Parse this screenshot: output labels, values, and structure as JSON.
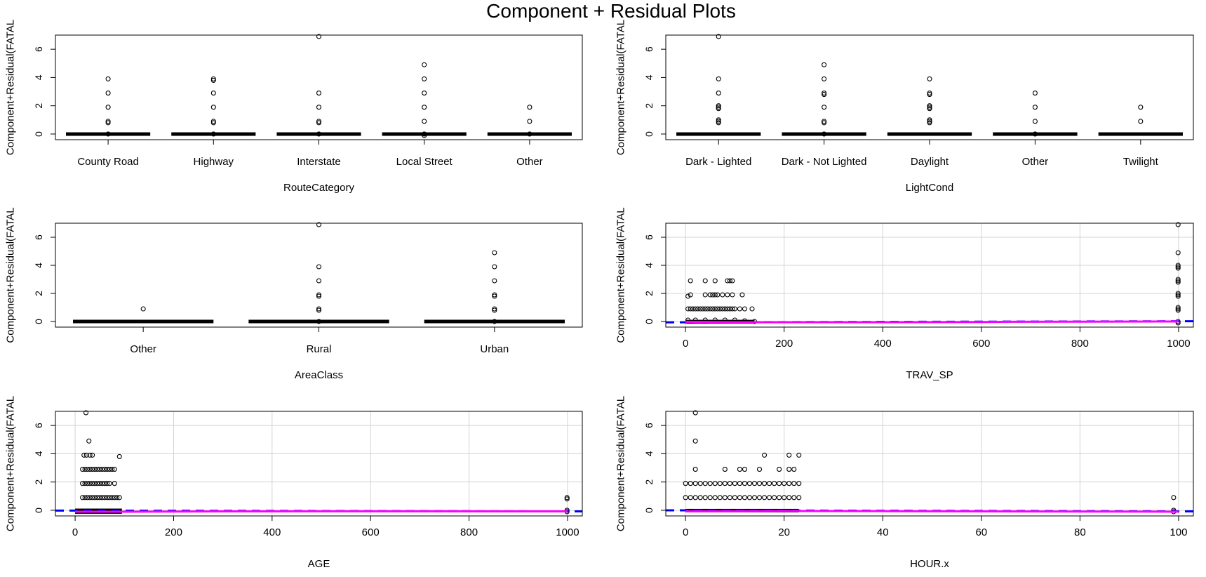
{
  "figure": {
    "title": "Component + Residual Plots"
  },
  "chart_data": [
    {
      "type": "box",
      "xlabel": "RouteCategory",
      "ylabel": "Component+Residual(FATAL",
      "ylim": [
        -0.4,
        7
      ],
      "yticks": [
        0,
        2,
        4,
        6
      ],
      "grid": false,
      "categories": [
        "County Road",
        "Highway",
        "Interstate",
        "Local Street",
        "Other"
      ],
      "groups": [
        {
          "box": [
            0,
            0,
            0
          ],
          "outliers": [
            0,
            0.8,
            0.9,
            1.9,
            2.9,
            3.9
          ]
        },
        {
          "box": [
            0,
            0,
            0
          ],
          "outliers": [
            0,
            0.8,
            0.9,
            1.9,
            2.9,
            3.8,
            3.9
          ]
        },
        {
          "box": [
            0,
            0,
            0
          ],
          "outliers": [
            0,
            0.8,
            0.9,
            1.9,
            2.9,
            6.9
          ]
        },
        {
          "box": [
            0,
            0,
            0
          ],
          "outliers": [
            -0.1,
            0,
            0.9,
            1.9,
            2.9,
            3.9,
            4.9
          ]
        },
        {
          "box": [
            0,
            0,
            0
          ],
          "outliers": [
            0,
            0.9,
            1.9
          ]
        }
      ]
    },
    {
      "type": "box",
      "xlabel": "LightCond",
      "ylabel": "Component+Residual(FATAL",
      "ylim": [
        -0.4,
        7
      ],
      "yticks": [
        0,
        2,
        4,
        6
      ],
      "grid": false,
      "categories": [
        "Dark - Lighted",
        "Dark - Not Lighted",
        "Daylight",
        "Other",
        "Twilight"
      ],
      "groups": [
        {
          "box": [
            0,
            0,
            0
          ],
          "outliers": [
            0.8,
            0.9,
            1.0,
            1.8,
            1.9,
            2.0,
            2.9,
            3.9,
            6.9
          ]
        },
        {
          "box": [
            0,
            0,
            0
          ],
          "outliers": [
            0,
            0.8,
            0.9,
            1.9,
            2.8,
            2.9,
            3.9,
            4.9
          ]
        },
        {
          "box": [
            0,
            0,
            0
          ],
          "outliers": [
            0.8,
            0.9,
            1.0,
            1.8,
            1.9,
            2.0,
            2.8,
            2.9,
            3.9
          ]
        },
        {
          "box": [
            0,
            0,
            0
          ],
          "outliers": [
            0,
            0.9,
            1.9,
            2.9
          ]
        },
        {
          "box": [
            0,
            0,
            0
          ],
          "outliers": [
            0.9,
            1.9
          ]
        }
      ]
    },
    {
      "type": "box",
      "xlabel": "AreaClass",
      "ylabel": "Component+Residual(FATAL",
      "ylim": [
        -0.4,
        7
      ],
      "yticks": [
        0,
        2,
        4,
        6
      ],
      "grid": false,
      "categories": [
        "Other",
        "Rural",
        "Urban"
      ],
      "groups": [
        {
          "box": [
            0,
            0,
            0
          ],
          "outliers": [
            0.9
          ]
        },
        {
          "box": [
            0,
            0,
            0
          ],
          "outliers": [
            0,
            0.8,
            0.9,
            1.8,
            1.9,
            2.9,
            3.9,
            6.9
          ]
        },
        {
          "box": [
            0,
            0,
            0
          ],
          "outliers": [
            0,
            0.8,
            0.9,
            1.8,
            1.9,
            2.9,
            3.9,
            4.9
          ]
        }
      ]
    },
    {
      "type": "scatter",
      "xlabel": "TRAV_SP",
      "ylabel": "Component+Residual(FATAL",
      "xlim": [
        -40,
        1030
      ],
      "ylim": [
        -0.4,
        7
      ],
      "xticks": [
        0,
        200,
        400,
        600,
        800,
        1000
      ],
      "yticks": [
        0,
        2,
        4,
        6
      ],
      "grid": true,
      "dense_band": {
        "x_range": [
          0,
          140
        ],
        "y_range": [
          -0.15,
          0.12
        ]
      },
      "points": [
        [
          5,
          0.9
        ],
        [
          10,
          0.9
        ],
        [
          15,
          0.9
        ],
        [
          20,
          0.9
        ],
        [
          25,
          0.9
        ],
        [
          30,
          0.9
        ],
        [
          35,
          0.9
        ],
        [
          40,
          0.9
        ],
        [
          45,
          0.9
        ],
        [
          50,
          0.9
        ],
        [
          55,
          0.9
        ],
        [
          60,
          0.9
        ],
        [
          65,
          0.9
        ],
        [
          70,
          0.9
        ],
        [
          75,
          0.9
        ],
        [
          80,
          0.9
        ],
        [
          85,
          0.9
        ],
        [
          90,
          0.9
        ],
        [
          95,
          0.9
        ],
        [
          100,
          0.9
        ],
        [
          110,
          0.9
        ],
        [
          120,
          0.9
        ],
        [
          135,
          0.9
        ],
        [
          5,
          1.8
        ],
        [
          10,
          1.9
        ],
        [
          40,
          1.9
        ],
        [
          50,
          1.9
        ],
        [
          55,
          1.9
        ],
        [
          60,
          1.9
        ],
        [
          65,
          1.9
        ],
        [
          75,
          1.9
        ],
        [
          85,
          1.9
        ],
        [
          95,
          1.9
        ],
        [
          115,
          1.9
        ],
        [
          10,
          2.9
        ],
        [
          40,
          2.9
        ],
        [
          60,
          2.9
        ],
        [
          85,
          2.9
        ],
        [
          90,
          2.9
        ],
        [
          95,
          2.9
        ],
        [
          5,
          0.1
        ],
        [
          20,
          0.1
        ],
        [
          40,
          0.1
        ],
        [
          60,
          0.1
        ],
        [
          80,
          0.1
        ],
        [
          100,
          0.1
        ],
        [
          120,
          0.05
        ],
        [
          140,
          0
        ],
        [
          999,
          -0.1
        ],
        [
          999,
          0
        ],
        [
          999,
          0.8
        ],
        [
          999,
          0.9
        ],
        [
          999,
          1.0
        ],
        [
          999,
          1.8
        ],
        [
          999,
          1.9
        ],
        [
          999,
          2.0
        ],
        [
          999,
          2.8
        ],
        [
          999,
          2.9
        ],
        [
          999,
          3.0
        ],
        [
          999,
          3.8
        ],
        [
          999,
          3.9
        ],
        [
          999,
          4.0
        ],
        [
          999,
          4.9
        ],
        [
          999,
          6.9
        ]
      ],
      "lines": [
        {
          "name": "",
          "color": "#0000ff",
          "dash": true,
          "x": [
            -40,
            1030
          ],
          "y": [
            -0.06,
            0.02
          ]
        },
        {
          "name": "",
          "color": "#ff00ff",
          "dash": false,
          "x": [
            0,
            100,
            200,
            400,
            600,
            660,
            800,
            1000
          ],
          "y": [
            -0.02,
            -0.05,
            -0.05,
            -0.05,
            -0.04,
            -0.02,
            -0.01,
            0
          ]
        }
      ]
    },
    {
      "type": "scatter",
      "xlabel": "AGE",
      "ylabel": "Component+Residual(FATAL",
      "xlim": [
        -40,
        1030
      ],
      "ylim": [
        -0.4,
        7
      ],
      "xticks": [
        0,
        200,
        400,
        600,
        800,
        1000
      ],
      "yticks": [
        0,
        2,
        4,
        6
      ],
      "grid": true,
      "dense_band": {
        "x_range": [
          0,
          95
        ],
        "y_range": [
          -0.25,
          0.12
        ]
      },
      "points": [
        [
          15,
          0.9
        ],
        [
          20,
          0.9
        ],
        [
          25,
          0.9
        ],
        [
          30,
          0.9
        ],
        [
          35,
          0.9
        ],
        [
          40,
          0.9
        ],
        [
          45,
          0.9
        ],
        [
          50,
          0.9
        ],
        [
          55,
          0.9
        ],
        [
          60,
          0.9
        ],
        [
          65,
          0.9
        ],
        [
          70,
          0.9
        ],
        [
          75,
          0.9
        ],
        [
          80,
          0.9
        ],
        [
          85,
          0.9
        ],
        [
          90,
          0.9
        ],
        [
          15,
          1.9
        ],
        [
          20,
          1.9
        ],
        [
          25,
          1.9
        ],
        [
          30,
          1.9
        ],
        [
          35,
          1.9
        ],
        [
          40,
          1.9
        ],
        [
          45,
          1.9
        ],
        [
          50,
          1.9
        ],
        [
          55,
          1.9
        ],
        [
          60,
          1.9
        ],
        [
          65,
          1.9
        ],
        [
          70,
          1.9
        ],
        [
          80,
          1.9
        ],
        [
          15,
          2.9
        ],
        [
          20,
          2.9
        ],
        [
          25,
          2.9
        ],
        [
          30,
          2.9
        ],
        [
          35,
          2.9
        ],
        [
          40,
          2.9
        ],
        [
          45,
          2.9
        ],
        [
          50,
          2.9
        ],
        [
          55,
          2.9
        ],
        [
          60,
          2.9
        ],
        [
          65,
          2.9
        ],
        [
          70,
          2.9
        ],
        [
          75,
          2.9
        ],
        [
          80,
          2.9
        ],
        [
          18,
          3.9
        ],
        [
          23,
          3.9
        ],
        [
          30,
          3.9
        ],
        [
          35,
          3.9
        ],
        [
          90,
          3.8
        ],
        [
          28,
          4.9
        ],
        [
          22,
          6.9
        ],
        [
          999,
          -0.1
        ],
        [
          999,
          0
        ],
        [
          999,
          0.8
        ],
        [
          999,
          0.9
        ]
      ],
      "lines": [
        {
          "name": "",
          "color": "#0000ff",
          "dash": true,
          "x": [
            -40,
            1030
          ],
          "y": [
            -0.02,
            -0.08
          ]
        },
        {
          "name": "",
          "color": "#ff00ff",
          "dash": false,
          "x": [
            0,
            100,
            300,
            500,
            700,
            880,
            1000
          ],
          "y": [
            -0.1,
            -0.1,
            -0.08,
            -0.07,
            -0.07,
            -0.08,
            -0.08
          ]
        }
      ]
    },
    {
      "type": "scatter",
      "xlabel": "HOUR.x",
      "ylabel": "Component+Residual(FATAL",
      "xlim": [
        -4,
        103
      ],
      "ylim": [
        -0.4,
        7
      ],
      "xticks": [
        0,
        20,
        40,
        60,
        80,
        100
      ],
      "yticks": [
        0,
        2,
        4,
        6
      ],
      "grid": true,
      "dense_band": {
        "x_range": [
          0,
          23
        ],
        "y_range": [
          -0.15,
          0.1
        ]
      },
      "points": [
        [
          0,
          0.9
        ],
        [
          1,
          0.9
        ],
        [
          2,
          0.9
        ],
        [
          3,
          0.9
        ],
        [
          4,
          0.9
        ],
        [
          5,
          0.9
        ],
        [
          6,
          0.9
        ],
        [
          7,
          0.9
        ],
        [
          8,
          0.9
        ],
        [
          9,
          0.9
        ],
        [
          10,
          0.9
        ],
        [
          11,
          0.9
        ],
        [
          12,
          0.9
        ],
        [
          13,
          0.9
        ],
        [
          14,
          0.9
        ],
        [
          15,
          0.9
        ],
        [
          16,
          0.9
        ],
        [
          17,
          0.9
        ],
        [
          18,
          0.9
        ],
        [
          19,
          0.9
        ],
        [
          20,
          0.9
        ],
        [
          21,
          0.9
        ],
        [
          22,
          0.9
        ],
        [
          23,
          0.9
        ],
        [
          0,
          1.9
        ],
        [
          1,
          1.9
        ],
        [
          2,
          1.9
        ],
        [
          3,
          1.9
        ],
        [
          4,
          1.9
        ],
        [
          5,
          1.9
        ],
        [
          6,
          1.9
        ],
        [
          7,
          1.9
        ],
        [
          8,
          1.9
        ],
        [
          9,
          1.9
        ],
        [
          10,
          1.9
        ],
        [
          11,
          1.9
        ],
        [
          12,
          1.9
        ],
        [
          13,
          1.9
        ],
        [
          14,
          1.9
        ],
        [
          15,
          1.9
        ],
        [
          16,
          1.9
        ],
        [
          17,
          1.9
        ],
        [
          18,
          1.9
        ],
        [
          19,
          1.9
        ],
        [
          20,
          1.9
        ],
        [
          21,
          1.9
        ],
        [
          22,
          1.9
        ],
        [
          23,
          1.9
        ],
        [
          2,
          2.9
        ],
        [
          8,
          2.9
        ],
        [
          11,
          2.9
        ],
        [
          12,
          2.9
        ],
        [
          15,
          2.9
        ],
        [
          19,
          2.9
        ],
        [
          21,
          2.9
        ],
        [
          22,
          2.9
        ],
        [
          16,
          3.9
        ],
        [
          21,
          3.9
        ],
        [
          23,
          3.9
        ],
        [
          2,
          4.9
        ],
        [
          2,
          6.9
        ],
        [
          99,
          -0.1
        ],
        [
          99,
          0
        ],
        [
          99,
          0.9
        ]
      ],
      "lines": [
        {
          "name": "",
          "color": "#0000ff",
          "dash": true,
          "x": [
            -4,
            103
          ],
          "y": [
            0,
            -0.08
          ]
        },
        {
          "name": "",
          "color": "#ff00ff",
          "dash": false,
          "x": [
            0,
            10,
            20,
            40,
            60,
            80,
            100
          ],
          "y": [
            -0.08,
            -0.07,
            -0.05,
            -0.06,
            -0.08,
            -0.09,
            -0.1
          ]
        }
      ]
    }
  ]
}
